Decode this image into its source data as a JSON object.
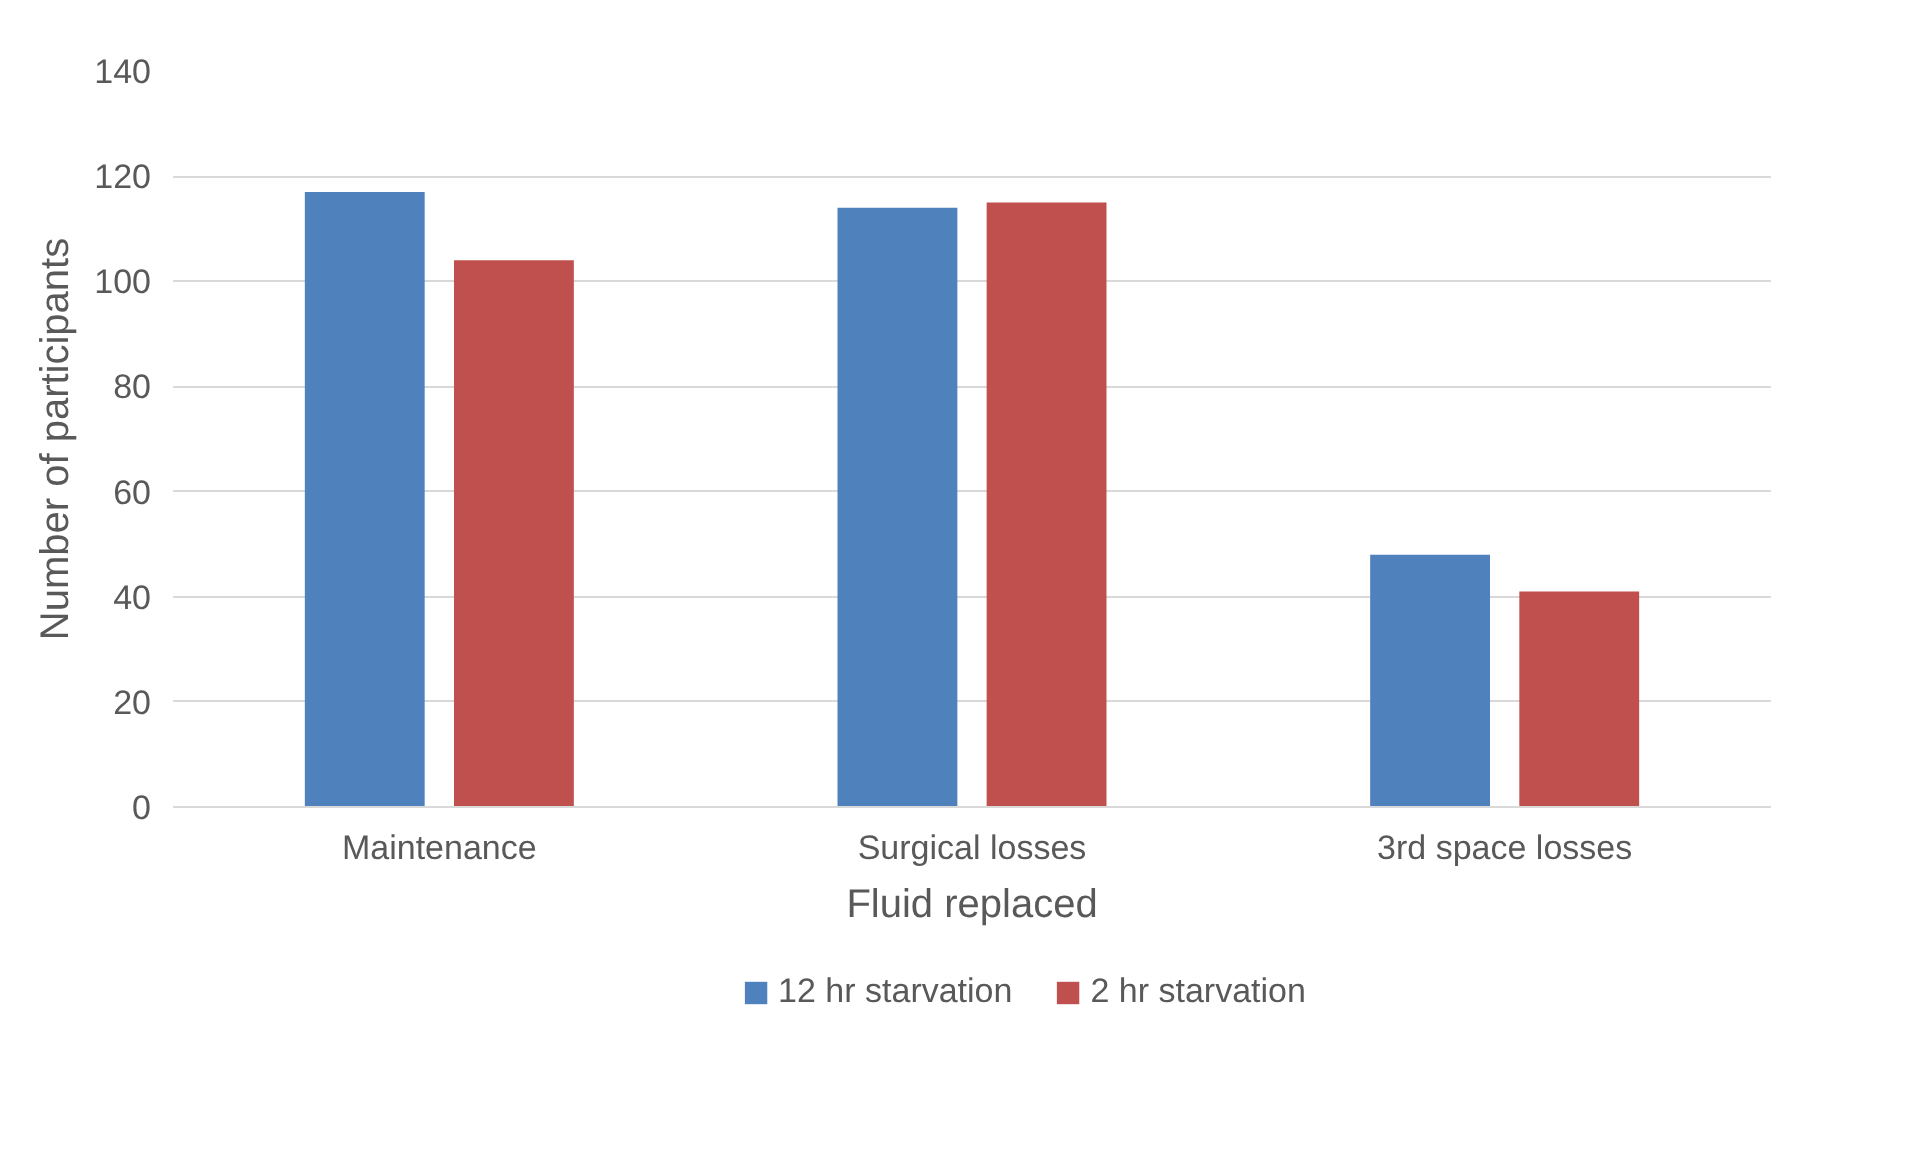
{
  "chart_data": {
    "type": "bar",
    "xlabel": "Fluid replaced",
    "ylabel": "Number of participants",
    "categories": [
      "Maintenance",
      "Surgical losses",
      "3rd space losses"
    ],
    "series": [
      {
        "name": "12 hr starvation",
        "color": "#4f81bd",
        "values": [
          117,
          114,
          48
        ]
      },
      {
        "name": "2 hr starvation",
        "color": "#c0504d",
        "values": [
          104,
          115,
          41
        ]
      }
    ],
    "ylim": [
      0,
      140
    ],
    "yticks": [
      0,
      20,
      40,
      60,
      80,
      100,
      120,
      140
    ],
    "grid": "y",
    "legend": "bottom"
  }
}
